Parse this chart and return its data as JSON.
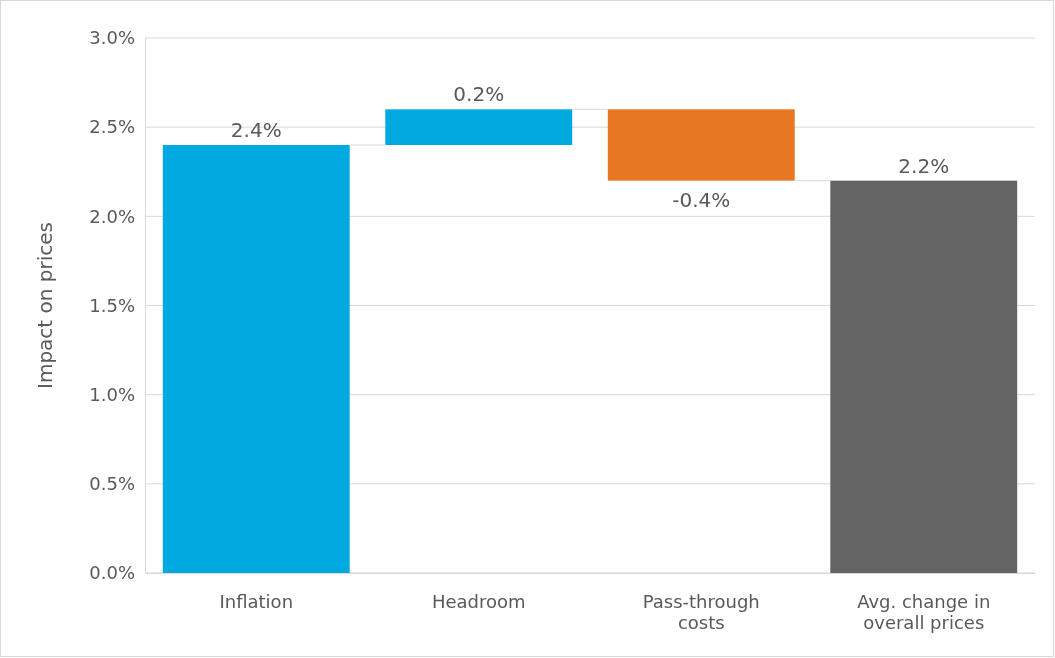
{
  "chart_data": {
    "type": "bar",
    "ylabel": "Impact on prices",
    "categories": [
      "Inflation",
      "Headroom",
      "Pass-through costs",
      "Avg. change in overall prices"
    ],
    "values": [
      2.4,
      0.2,
      -0.4,
      2.2
    ],
    "base": [
      0,
      2.4,
      2.6,
      0
    ],
    "colors": [
      "#00a9e0",
      "#00a9e0",
      "#e87722",
      "#646464"
    ],
    "value_labels": [
      "2.4%",
      "0.2%",
      "-0.4%",
      "2.2%"
    ],
    "ylim": [
      0,
      3
    ],
    "yticks": [
      {
        "value": 0,
        "label": "0.0%"
      },
      {
        "value": 0.5,
        "label": "0.5%"
      },
      {
        "value": 1,
        "label": "1.0%"
      },
      {
        "value": 1.5,
        "label": "1.5%"
      },
      {
        "value": 2,
        "label": "2.0%"
      },
      {
        "value": 2.5,
        "label": "2.5%"
      },
      {
        "value": 3,
        "label": "3.0%"
      }
    ],
    "grid": "y"
  }
}
